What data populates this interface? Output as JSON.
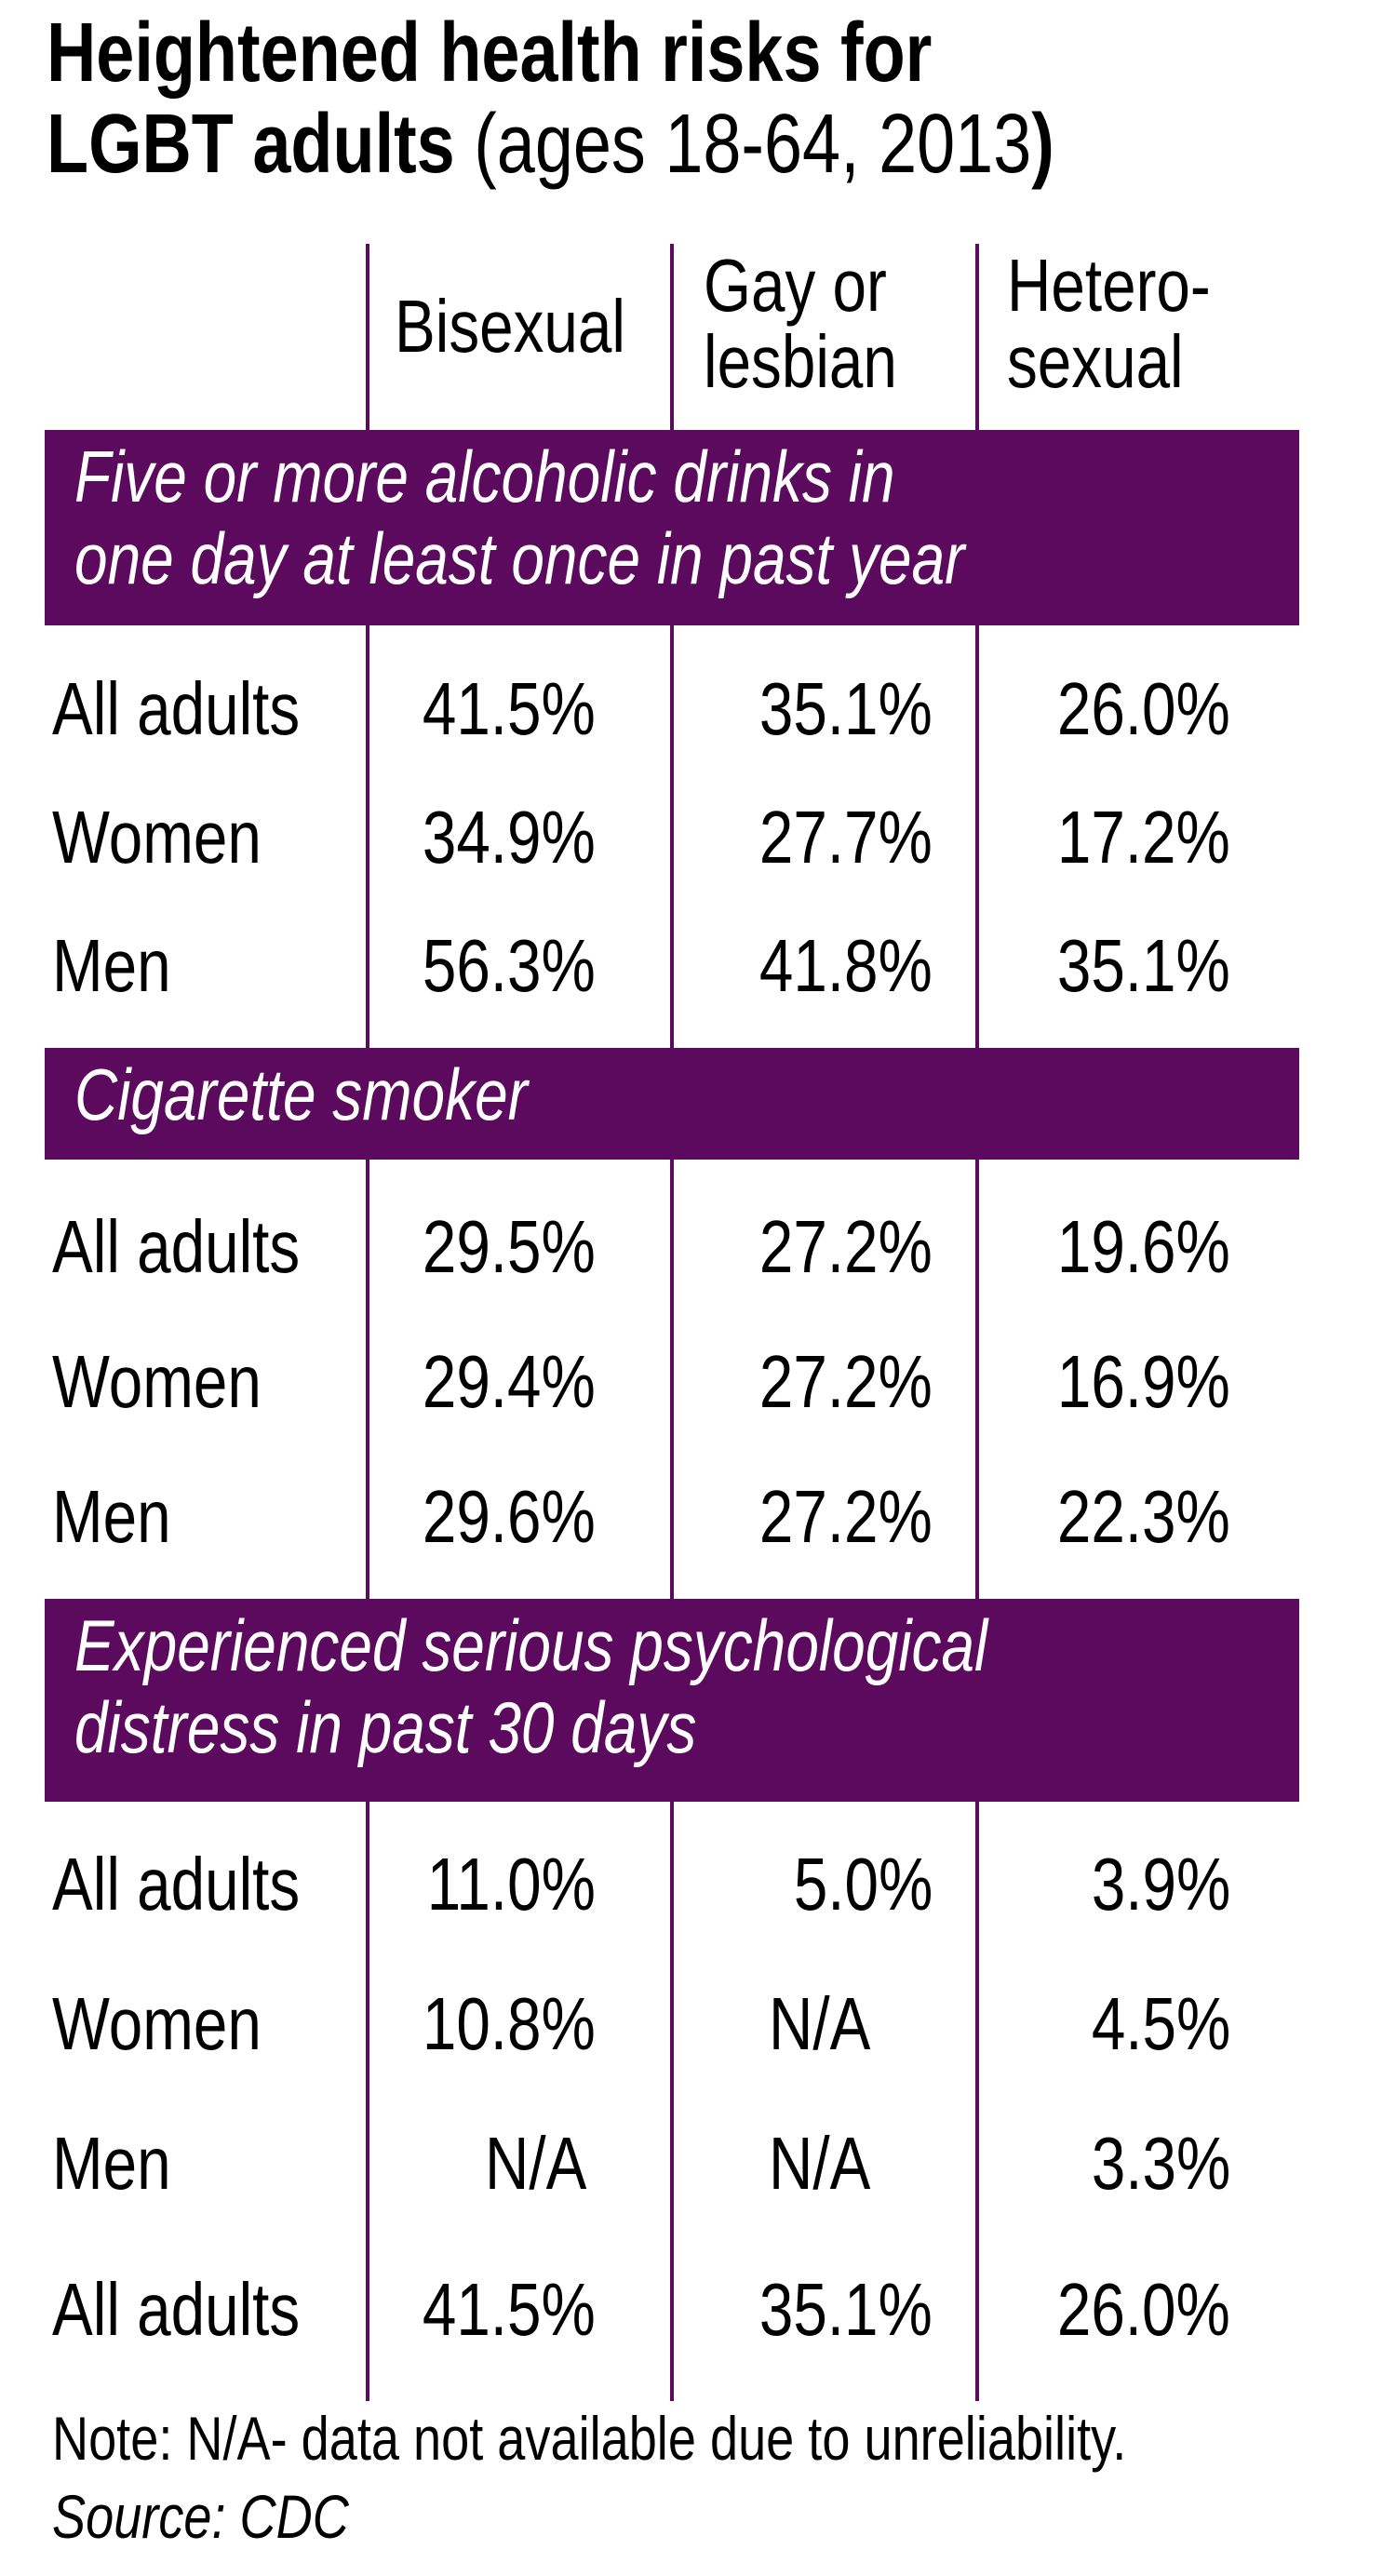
{
  "title": {
    "line1": "Heightened health risks for",
    "line2_bold": "LGBT adults",
    "line2_paren_open": " (",
    "line2_normal": "ages 18-64, 2013",
    "line2_paren_close": ")"
  },
  "columns": {
    "bisexual": "Bisexual",
    "gay_line1": "Gay or",
    "gay_line2": "lesbian",
    "hetero_line1": "Hetero-",
    "hetero_line2": "sexual"
  },
  "colors": {
    "band": "#5b0a5d",
    "band_text": "#ffffff",
    "text": "#000000"
  },
  "chart_data": {
    "type": "table",
    "title": "Heightened health risks for LGBT adults (ages 18-64, 2013)",
    "columns": [
      "Bisexual",
      "Gay or lesbian",
      "Hetero-sexual"
    ],
    "sections": [
      {
        "label_line1": "Five or more alcoholic drinks in",
        "label_line2": "one day at least once in past year",
        "rows": [
          {
            "label": "All adults",
            "values": [
              "41.5%",
              "35.1%",
              "26.0%"
            ]
          },
          {
            "label": "Women",
            "values": [
              "34.9%",
              "27.7%",
              "17.2%"
            ]
          },
          {
            "label": "Men",
            "values": [
              "56.3%",
              "41.8%",
              "35.1%"
            ]
          }
        ]
      },
      {
        "label_line1": "Cigarette smoker",
        "label_line2": "",
        "rows": [
          {
            "label": "All adults",
            "values": [
              "29.5%",
              "27.2%",
              "19.6%"
            ]
          },
          {
            "label": "Women",
            "values": [
              "29.4%",
              "27.2%",
              "16.9%"
            ]
          },
          {
            "label": "Men",
            "values": [
              "29.6%",
              "27.2%",
              "22.3%"
            ]
          }
        ]
      },
      {
        "label_line1": "Experienced serious psychological",
        "label_line2": "distress in past 30 days",
        "rows": [
          {
            "label": "All adults",
            "values": [
              "11.0%",
              "5.0%",
              "3.9%"
            ]
          },
          {
            "label": "Women",
            "values": [
              "10.8%",
              "N/A",
              "4.5%"
            ]
          },
          {
            "label": "Men",
            "values": [
              "N/A",
              "N/A",
              "3.3%"
            ]
          },
          {
            "label": "All adults",
            "values": [
              "41.5%",
              "35.1%",
              "26.0%"
            ]
          }
        ]
      }
    ]
  },
  "footer": {
    "note": "Note: N/A- data not available due to unreliability.",
    "source": "Source: CDC"
  }
}
